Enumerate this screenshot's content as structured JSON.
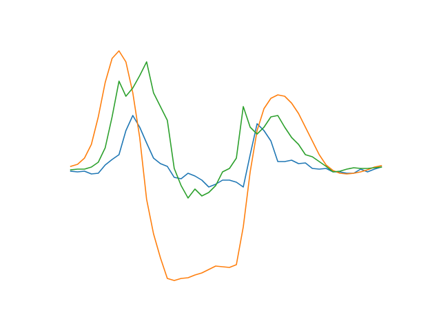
{
  "chart_data": {
    "type": "line",
    "x": [
      0,
      1,
      2,
      3,
      4,
      5,
      6,
      7,
      8,
      9,
      10,
      11,
      12,
      13,
      14,
      15,
      16,
      17,
      18,
      19,
      20,
      21,
      22,
      23,
      24,
      25,
      26,
      27,
      28,
      29,
      30,
      31,
      32,
      33,
      34,
      35,
      36,
      37,
      38,
      39,
      40,
      41,
      42,
      43,
      44,
      45
    ],
    "xlim": [
      -2.25,
      47.25
    ],
    "ylim": [
      -185,
      184
    ],
    "series": [
      {
        "color": "#1f77b4",
        "values": [
          -7,
          -8,
          -7,
          -11,
          -10,
          2,
          10,
          17,
          52,
          74,
          57,
          34,
          12,
          4,
          0,
          -16,
          -18,
          -10,
          -14,
          -20,
          -30,
          -26,
          -20,
          -20,
          -23,
          -30,
          17,
          62,
          52,
          37,
          7,
          7,
          9,
          4,
          5,
          -3,
          -4,
          -3,
          -8,
          -8,
          -10,
          -10,
          -4,
          -8,
          -4,
          -1
        ]
      },
      {
        "color": "#ff7f0e",
        "values": [
          0,
          3,
          12,
          32,
          72,
          122,
          157,
          168,
          152,
          107,
          42,
          -48,
          -98,
          -133,
          -163,
          -166,
          -163,
          -162,
          -158,
          -155,
          -150,
          -145,
          -146,
          -147,
          -143,
          -88,
          -8,
          52,
          84,
          99,
          104,
          102,
          92,
          77,
          57,
          37,
          17,
          2,
          -6,
          -10,
          -11,
          -10,
          -8,
          -5,
          -1,
          1
        ]
      },
      {
        "color": "#2ca02c",
        "values": [
          -5,
          -4,
          -4,
          -1,
          6,
          27,
          72,
          124,
          102,
          114,
          132,
          152,
          107,
          87,
          67,
          -3,
          -28,
          -46,
          -33,
          -43,
          -38,
          -28,
          -8,
          -3,
          12,
          87,
          57,
          47,
          57,
          72,
          74,
          57,
          42,
          32,
          17,
          14,
          7,
          0,
          -8,
          -7,
          -4,
          -2,
          -3,
          -3,
          -2,
          -1
        ]
      }
    ]
  }
}
